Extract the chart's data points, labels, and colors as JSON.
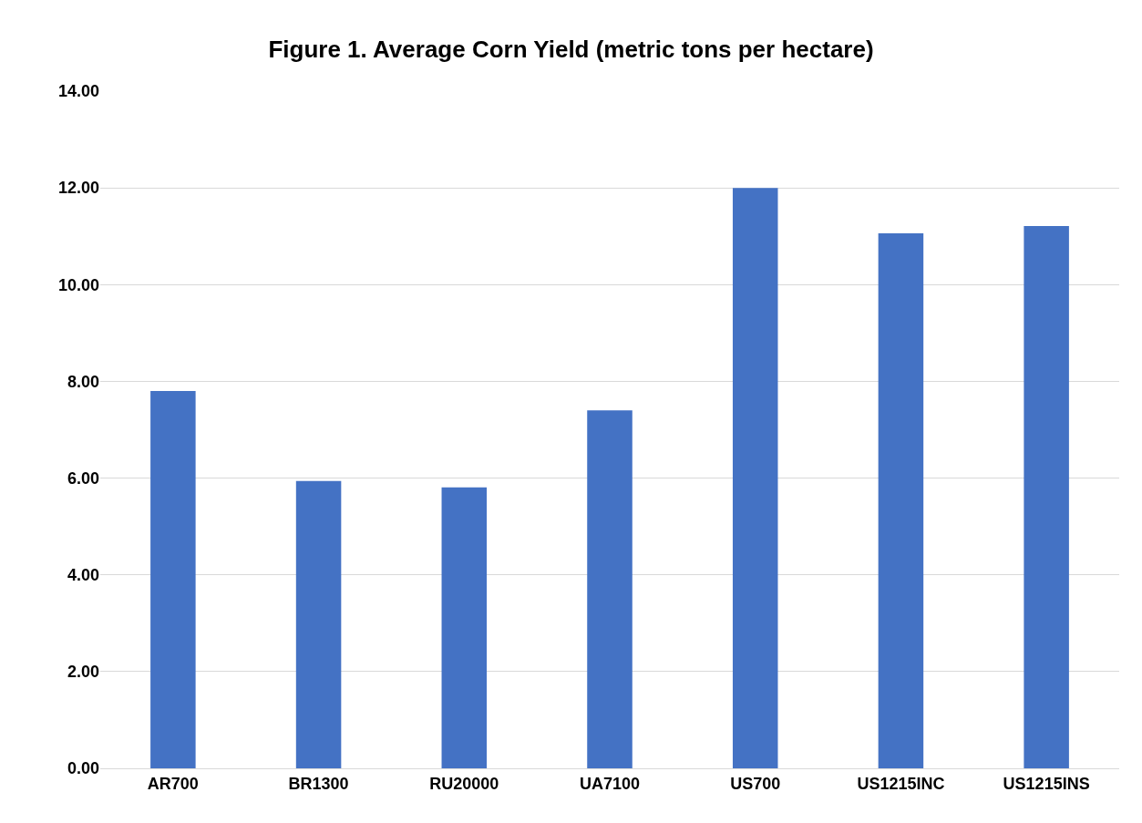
{
  "chart_data": {
    "type": "bar",
    "title": "Figure 1. Average Corn Yield (metric tons per hectare)",
    "categories": [
      "AR700",
      "BR1300",
      "RU20000",
      "UA7100",
      "US700",
      "US1215INC",
      "US1215INS"
    ],
    "values": [
      7.8,
      5.94,
      5.81,
      7.4,
      12.0,
      11.06,
      11.21
    ],
    "color": "#4472c4",
    "ylim": [
      0,
      14
    ],
    "yticks": [
      {
        "value": 0,
        "label": "0.00"
      },
      {
        "value": 2,
        "label": "2.00"
      },
      {
        "value": 4,
        "label": "4.00"
      },
      {
        "value": 6,
        "label": "6.00"
      },
      {
        "value": 8,
        "label": "8.00"
      },
      {
        "value": 10,
        "label": "10.00"
      },
      {
        "value": 12,
        "label": "12.00"
      },
      {
        "value": 14,
        "label": "14.00"
      }
    ],
    "grid": "y",
    "legend": false
  }
}
